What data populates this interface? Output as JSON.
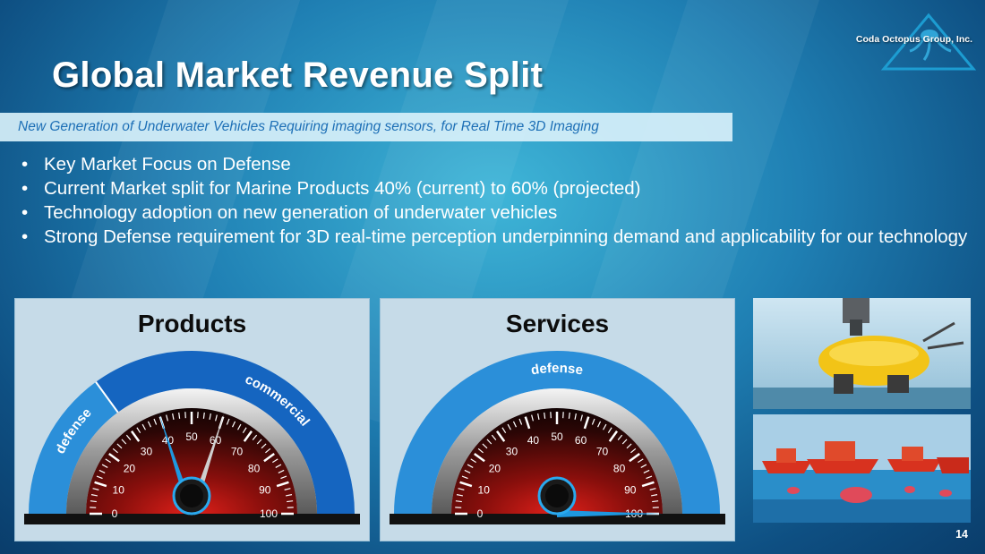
{
  "slide": {
    "title": "Global Market Revenue Split",
    "company": "Coda Octopus Group, Inc.",
    "subtitle_banner": "New Generation of Underwater Vehicles Requiring imaging sensors, for Real Time 3D Imaging",
    "bullets": [
      {
        "text": "Key Market Focus on Defense"
      },
      {
        "text": "Current Market split for Marine Products 40% (current) to 60% (projected)"
      },
      {
        "text": "Technology adoption on new generation of underwater vehicles"
      },
      {
        "text": "Strong Defense requirement for 3D real-time perception underpinning demand and applicability for our technology"
      }
    ],
    "bullet_symbol": "•",
    "page_number": "14"
  },
  "gauges": {
    "products": {
      "title": "Products",
      "label_left": "defense",
      "label_right": "commercial",
      "split": 40,
      "needles": [
        40,
        60
      ]
    },
    "services": {
      "title": "Services",
      "label": "defense",
      "needle": 100
    },
    "tick_labels": [
      "0",
      "10",
      "20",
      "30",
      "40",
      "50",
      "60",
      "70",
      "80",
      "90",
      "100"
    ]
  },
  "colors": {
    "arc_dark": "#1565c0",
    "arc_light": "#2b8fd9",
    "banner_text": "#1d6fb6",
    "needle": "#1e98e0"
  },
  "images": [
    {
      "icon": "yellow-auv-photo"
    },
    {
      "icon": "red-vessels-underwater-photo"
    }
  ]
}
